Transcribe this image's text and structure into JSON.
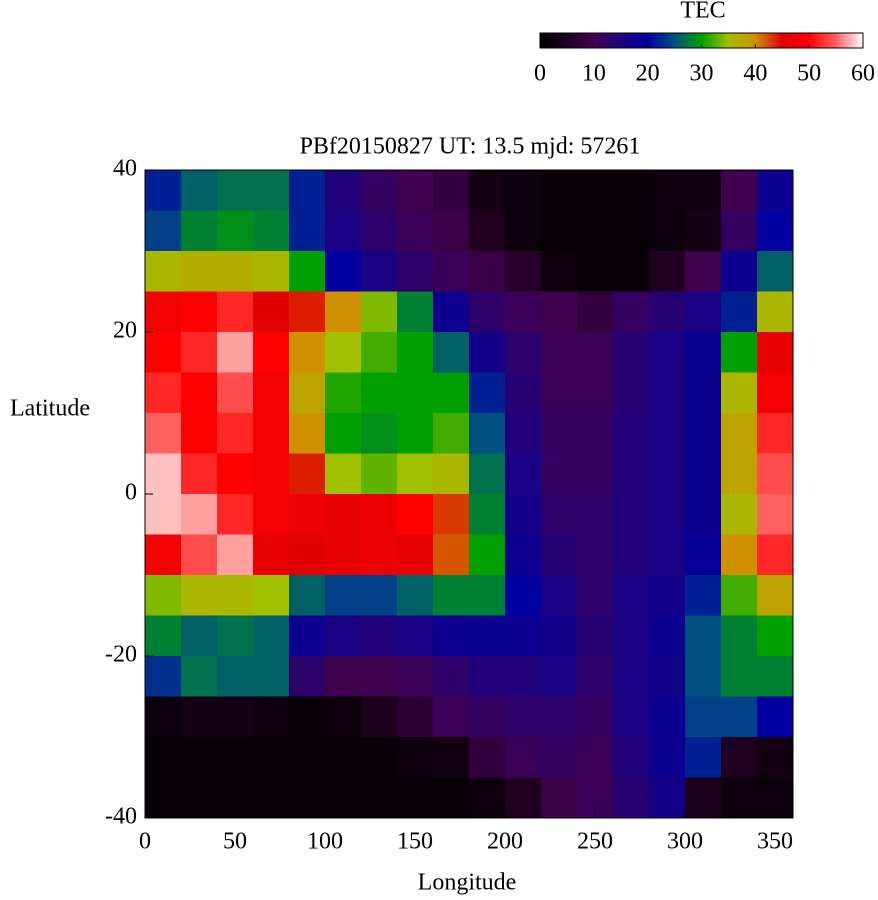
{
  "chart_data": {
    "type": "heatmap",
    "title": "PBf20150827  UT: 13.5  mjd: 57261",
    "xlabel": "Longitude",
    "ylabel": "Latitude",
    "colorbar_label": "TEC",
    "xlim": [
      0,
      360
    ],
    "ylim": [
      -40,
      40
    ],
    "xticks": [
      0,
      50,
      100,
      150,
      200,
      250,
      300,
      350
    ],
    "yticks": [
      -40,
      -20,
      0,
      20,
      40
    ],
    "zlim": [
      0,
      60
    ],
    "zticks": [
      0,
      10,
      20,
      30,
      40,
      50,
      60
    ],
    "colorscale": [
      "#000000",
      "#200020",
      "#400050",
      "#20007a",
      "#0000a0",
      "#005080",
      "#00a000",
      "#a0c000",
      "#d09000",
      "#e00000",
      "#ff0000",
      "#ff6060",
      "#ffffff"
    ],
    "x": [
      10,
      30,
      50,
      70,
      90,
      110,
      130,
      150,
      170,
      190,
      210,
      230,
      250,
      270,
      290,
      310,
      330,
      350
    ],
    "y": [
      37.5,
      32.5,
      27.5,
      22.5,
      17.5,
      12.5,
      7.5,
      2.5,
      -2.5,
      -7.5,
      -12.5,
      -17.5,
      -22.5,
      -27.5,
      -32.5,
      -37.5
    ],
    "z": [
      [
        22,
        26,
        27,
        27,
        22,
        15,
        12,
        10,
        8,
        3,
        2,
        1,
        1,
        1,
        2,
        2,
        10,
        18
      ],
      [
        24,
        28,
        29,
        28,
        22,
        16,
        13,
        11,
        9,
        5,
        2,
        1,
        1,
        1,
        2,
        3,
        12,
        20
      ],
      [
        36,
        37,
        37,
        36,
        30,
        20,
        16,
        13,
        11,
        9,
        6,
        2,
        1,
        1,
        5,
        10,
        18,
        26
      ],
      [
        48,
        50,
        52,
        45,
        44,
        40,
        34,
        28,
        18,
        13,
        11,
        10,
        8,
        12,
        14,
        16,
        22,
        36
      ],
      [
        50,
        52,
        57,
        50,
        40,
        35,
        32,
        30,
        26,
        17,
        13,
        11,
        11,
        14,
        16,
        18,
        30,
        46
      ],
      [
        52,
        50,
        54,
        48,
        38,
        31,
        30,
        30,
        30,
        22,
        14,
        11,
        11,
        14,
        16,
        18,
        36,
        48
      ],
      [
        55,
        50,
        52,
        48,
        40,
        30,
        29,
        30,
        32,
        25,
        15,
        12,
        12,
        15,
        16,
        18,
        38,
        52
      ],
      [
        58,
        52,
        50,
        48,
        44,
        35,
        33,
        35,
        36,
        27,
        16,
        12,
        12,
        15,
        16,
        18,
        38,
        54
      ],
      [
        58,
        57,
        52,
        48,
        47,
        46,
        47,
        50,
        43,
        28,
        17,
        13,
        13,
        15,
        16,
        18,
        36,
        55
      ],
      [
        48,
        54,
        57,
        46,
        45,
        46,
        47,
        46,
        42,
        30,
        18,
        14,
        13,
        15,
        16,
        19,
        40,
        52
      ],
      [
        34,
        36,
        36,
        35,
        26,
        24,
        24,
        26,
        28,
        28,
        20,
        16,
        13,
        16,
        17,
        22,
        32,
        38
      ],
      [
        28,
        26,
        27,
        26,
        18,
        16,
        15,
        16,
        18,
        18,
        18,
        17,
        14,
        16,
        18,
        25,
        28,
        30
      ],
      [
        23,
        27,
        26,
        26,
        13,
        10,
        10,
        11,
        13,
        15,
        15,
        16,
        13,
        16,
        17,
        25,
        28,
        28
      ],
      [
        2,
        3,
        3,
        2,
        1,
        2,
        4,
        7,
        11,
        12,
        13,
        13,
        12,
        16,
        18,
        24,
        24,
        20
      ],
      [
        1,
        1,
        1,
        1,
        1,
        1,
        1,
        2,
        3,
        8,
        11,
        12,
        11,
        15,
        18,
        22,
        5,
        3
      ],
      [
        1,
        1,
        1,
        1,
        1,
        1,
        1,
        1,
        1,
        2,
        5,
        9,
        11,
        14,
        17,
        4,
        2,
        2
      ]
    ]
  }
}
